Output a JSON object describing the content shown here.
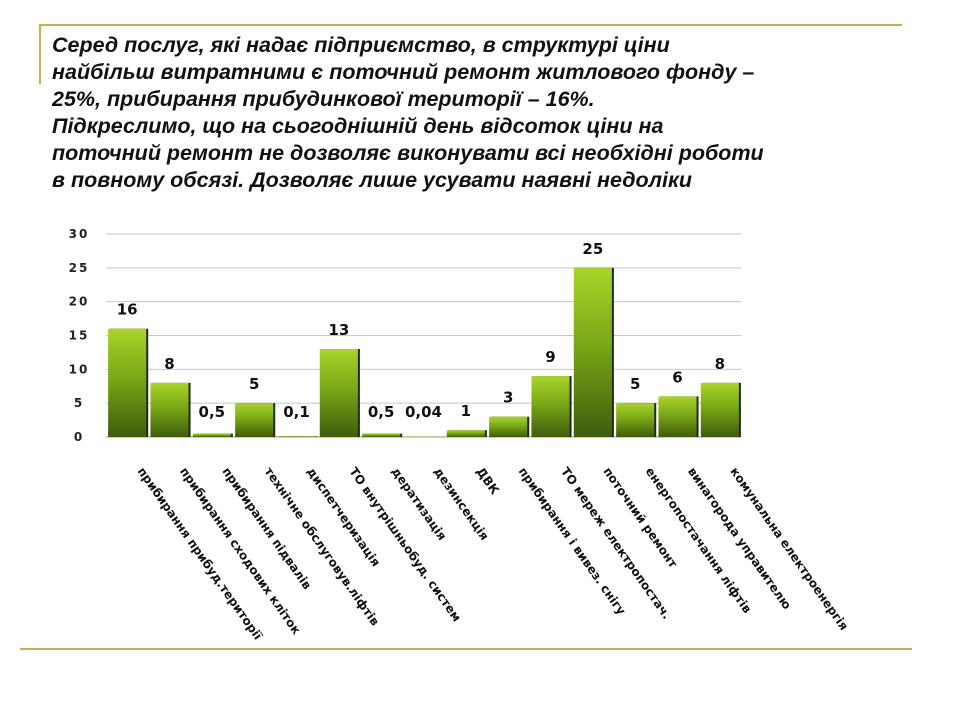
{
  "heading": {
    "lines": [
      "Серед послуг, які надає підприємство, в структурі ціни",
      "найбільш витратними є поточний ремонт житлового фонду –",
      "25%, прибирання прибудинкової території – 16%.",
      "Підкреслимо, що на сьогоднішній день відсоток ціни на",
      "поточний ремонт не дозволяє виконувати всі необхідні роботи",
      "в повному обсязі. Дозволяє лише усувати наявні недоліки"
    ]
  },
  "chart_data": {
    "type": "bar",
    "categories": [
      "прибирання прибуд.території",
      "прибирання сходових кліток",
      "прибирання підвалів",
      "технічне обслуговув.ліфтів",
      "диспетчеризація",
      "ТО внутрішньобуд. систем",
      "дератизація",
      "дезинсекція",
      "ДВК",
      "прибирання і вивез. снігу",
      "ТО мереж електропостач.",
      "поточний ремонт",
      "енергопостачання ліфтів",
      "винагорода управителю",
      "комунальна електроенергія"
    ],
    "values": [
      16,
      8,
      0.5,
      5,
      0.1,
      13,
      0.5,
      0.04,
      1,
      3,
      9,
      25,
      5,
      6,
      8
    ],
    "value_labels": [
      "16",
      "8",
      "0,5",
      "5",
      "0,1",
      "13",
      "0,5",
      "0,04",
      "1",
      "3",
      "9",
      "25",
      "5",
      "6",
      "8"
    ],
    "ylim": [
      0,
      30
    ],
    "yticks": [
      "0",
      "5",
      "10",
      "15",
      "20",
      "25",
      "30"
    ],
    "grid": true,
    "colors": {
      "bar_top": "#a8d42a",
      "bar_mid": "#7aa817",
      "bar_bottom": "#3f5c0c",
      "shadow": "#1f2a06",
      "grid": "#c8c8c8"
    }
  }
}
